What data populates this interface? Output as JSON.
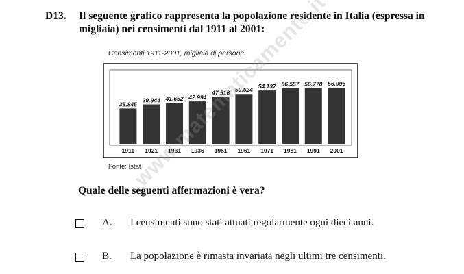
{
  "question": {
    "number": "D13.",
    "text": "Il seguente grafico rappresenta la popolazione residente in Italia (espressa in migliaia) nei censimenti dal 1911 al 2001:"
  },
  "chart_data": {
    "type": "bar",
    "title": "Censimenti 1911-2001, migliaia di persone",
    "categories": [
      "1911",
      "1921",
      "1931",
      "1936",
      "1951",
      "1961",
      "1971",
      "1981",
      "1991",
      "2001"
    ],
    "values": [
      35845,
      39944,
      41652,
      42994,
      47516,
      50624,
      54137,
      56557,
      56778,
      56996
    ],
    "value_labels": [
      "35.845",
      "39.944",
      "41.652",
      "42.994",
      "47.516",
      "50.624",
      "54.137",
      "56.557",
      "56.778",
      "56.996"
    ],
    "xlabel": "",
    "ylabel": "",
    "bar_color": "#333333",
    "grid": false
  },
  "source": "Fonte: Istat",
  "prompt": "Quale delle seguenti affermazioni è vera?",
  "options": [
    {
      "letter": "A.",
      "text": "I censimenti sono stati attuati regolarmente ogni dieci anni."
    },
    {
      "letter": "B.",
      "text": "La popolazione è rimasta invariata negli ultimi tre censimenti."
    }
  ],
  "watermark": "www.matematicamente.it"
}
